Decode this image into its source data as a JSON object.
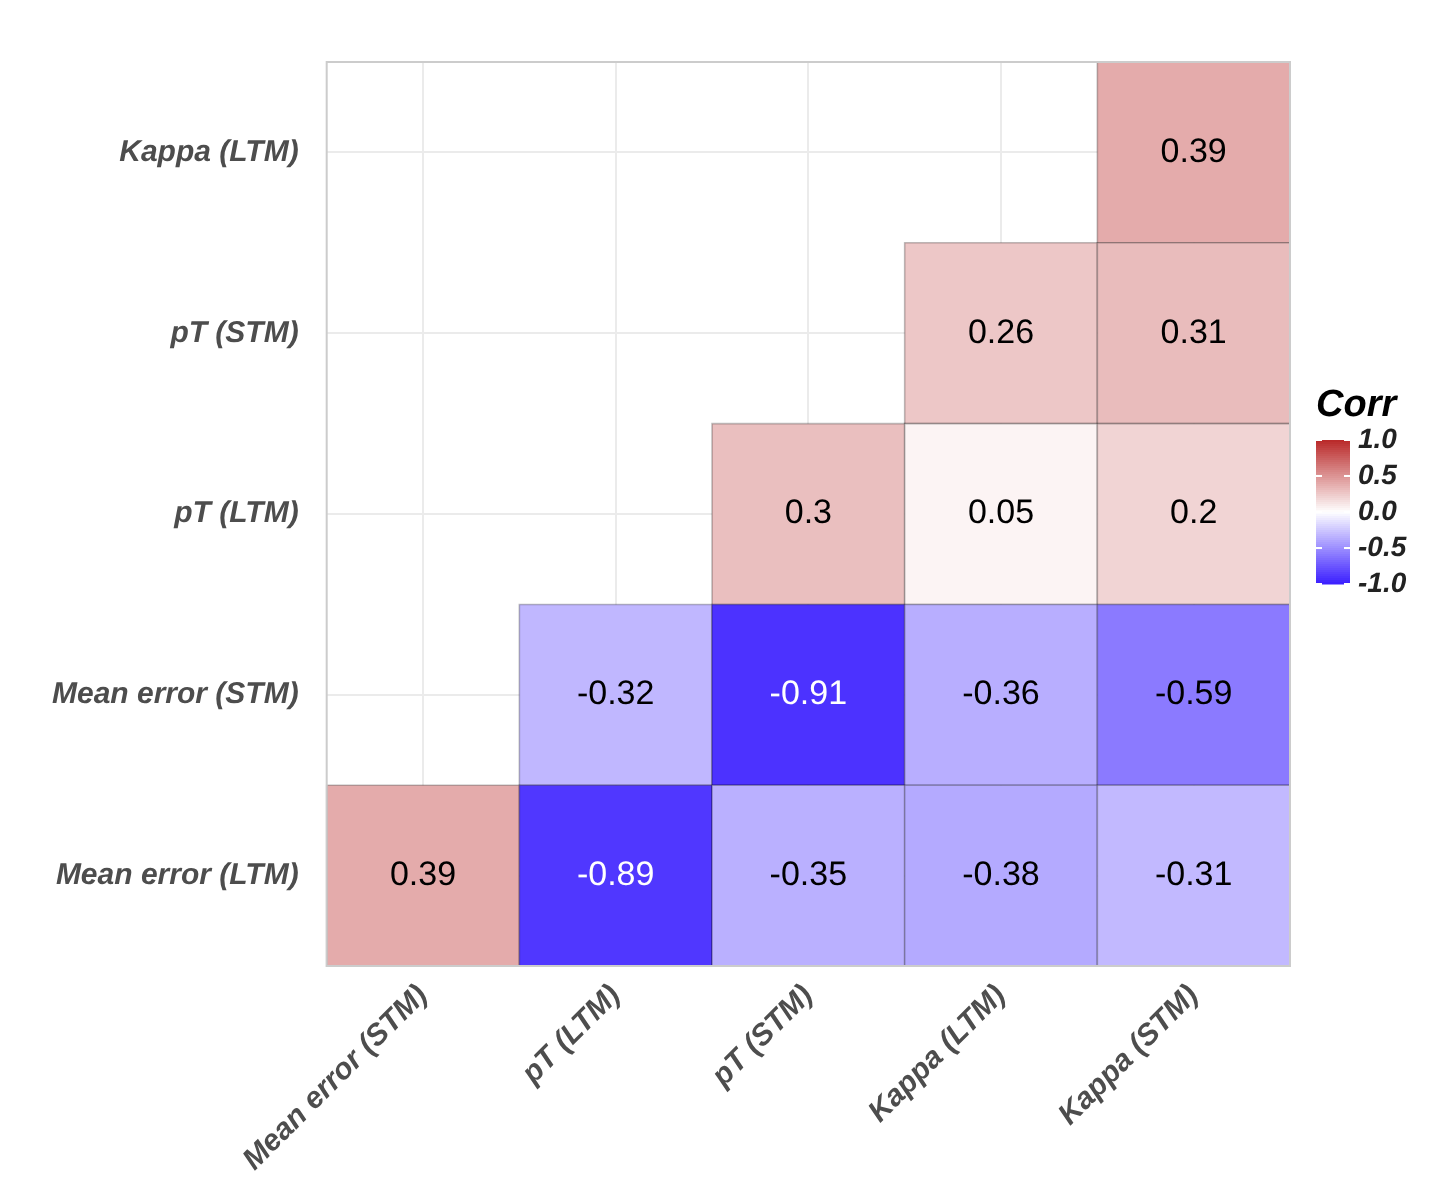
{
  "chart_data": {
    "type": "heatmap",
    "clabel": "Corr",
    "categories": [
      "Mean error (STM)",
      "pT (LTM)",
      "pT (STM)",
      "Kappa (LTM)",
      "Kappa (STM)"
    ],
    "y_categories": [
      "Kappa (LTM)",
      "pT (STM)",
      "pT (LTM)",
      "Mean error (STM)",
      "Mean error (LTM)"
    ],
    "cells": [
      [
        null,
        null,
        null,
        null,
        0.39
      ],
      [
        null,
        null,
        null,
        0.26,
        0.31
      ],
      [
        null,
        null,
        0.3,
        0.05,
        0.2
      ],
      [
        null,
        -0.32,
        -0.91,
        -0.36,
        -0.59
      ],
      [
        0.39,
        -0.89,
        -0.35,
        -0.38,
        -0.31
      ]
    ],
    "clim": [
      -1,
      1
    ],
    "cticks": [
      {
        "value": 1,
        "label": "1.0"
      },
      {
        "value": 0.5,
        "label": "0.5"
      },
      {
        "value": 0,
        "label": "0.0"
      },
      {
        "value": -0.5,
        "label": "-0.5"
      },
      {
        "value": -1,
        "label": "-1.0"
      }
    ],
    "data_labels": true,
    "grid": true
  }
}
